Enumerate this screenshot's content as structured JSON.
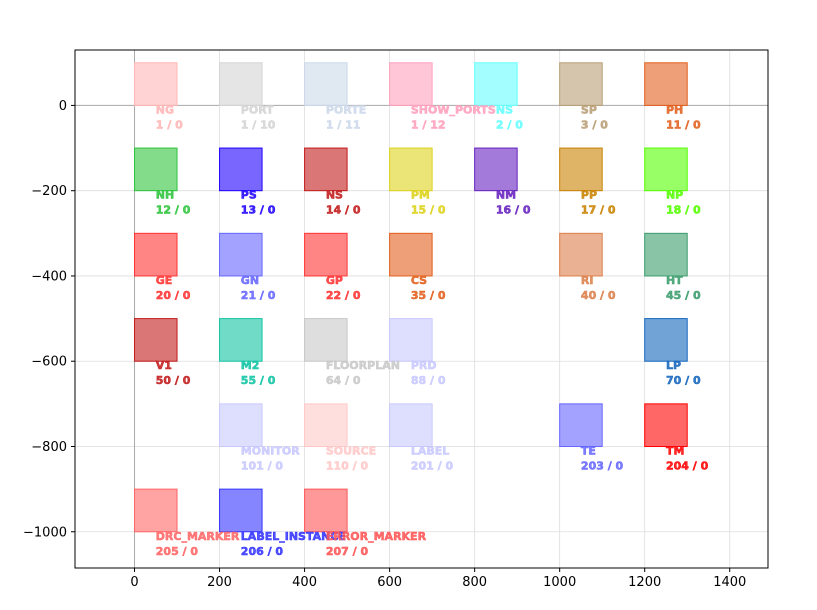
{
  "chart_data": {
    "type": "scatter",
    "title": "",
    "xlabel": "",
    "ylabel": "",
    "xlim": [
      -140,
      1490
    ],
    "ylim": [
      -1085,
      130
    ],
    "grid": true,
    "x_ticks": [
      0,
      200,
      400,
      600,
      800,
      1000,
      1200,
      1400
    ],
    "y_ticks": [
      0,
      -200,
      -400,
      -600,
      -800,
      -1000
    ],
    "x_tick_labels": [
      "0",
      "200",
      "400",
      "600",
      "800",
      "1000",
      "1200",
      "1400"
    ],
    "y_tick_labels": [
      "0",
      "−200",
      "−400",
      "−600",
      "−800",
      "−1000"
    ],
    "cell_size": 100,
    "cells": [
      {
        "name": "NG",
        "numbers": "1 / 0",
        "x": 0,
        "y": 0,
        "color": "#ffb6b6"
      },
      {
        "name": "PORT",
        "numbers": "1 / 10",
        "x": 200,
        "y": 0,
        "color": "#d4d4d4"
      },
      {
        "name": "PORTE",
        "numbers": "1 / 11",
        "x": 400,
        "y": 0,
        "color": "#ccd8ea"
      },
      {
        "name": "SHOW_PORTS",
        "numbers": "1 / 12",
        "x": 600,
        "y": 0,
        "color": "#ffa0bc"
      },
      {
        "name": "NS",
        "numbers": "2 / 0",
        "x": 800,
        "y": 0,
        "color": "#66ffff"
      },
      {
        "name": "SP",
        "numbers": "3 / 0",
        "x": 1000,
        "y": 0,
        "color": "#b89e75"
      },
      {
        "name": "PH",
        "numbers": "11 / 0",
        "x": 1200,
        "y": 0,
        "color": "#e25f1c"
      },
      {
        "name": "NH",
        "numbers": "12 / 0",
        "x": 0,
        "y": -200,
        "color": "#2ec43c"
      },
      {
        "name": "PS",
        "numbers": "13 / 0",
        "x": 200,
        "y": -200,
        "color": "#1f00ff"
      },
      {
        "name": "NS",
        "numbers": "14 / 0",
        "x": 400,
        "y": -200,
        "color": "#c21a1a"
      },
      {
        "name": "PM",
        "numbers": "15 / 0",
        "x": 600,
        "y": -200,
        "color": "#ddd21a"
      },
      {
        "name": "NM",
        "numbers": "16 / 0",
        "x": 800,
        "y": -200,
        "color": "#6621bf"
      },
      {
        "name": "PP",
        "numbers": "17 / 0",
        "x": 1000,
        "y": -200,
        "color": "#c98200"
      },
      {
        "name": "NP",
        "numbers": "18 / 0",
        "x": 1200,
        "y": -200,
        "color": "#55ff00"
      },
      {
        "name": "GE",
        "numbers": "20 / 0",
        "x": 0,
        "y": -400,
        "color": "#ff3333"
      },
      {
        "name": "GN",
        "numbers": "21 / 0",
        "x": 200,
        "y": -400,
        "color": "#6666ff"
      },
      {
        "name": "GP",
        "numbers": "22 / 0",
        "x": 400,
        "y": -400,
        "color": "#ff3333"
      },
      {
        "name": "CS",
        "numbers": "35 / 0",
        "x": 600,
        "y": -400,
        "color": "#e25f1c"
      },
      {
        "name": "RI",
        "numbers": "40 / 0",
        "x": 1000,
        "y": -400,
        "color": "#dc7f4a"
      },
      {
        "name": "HT",
        "numbers": "45 / 0",
        "x": 1200,
        "y": -400,
        "color": "#3b9c6c"
      },
      {
        "name": "V1",
        "numbers": "50 / 0",
        "x": 0,
        "y": -600,
        "color": "#c21a1a"
      },
      {
        "name": "M2",
        "numbers": "55 / 0",
        "x": 200,
        "y": -600,
        "color": "#11c4a4"
      },
      {
        "name": "FLOORPLAN",
        "numbers": "64 / 0",
        "x": 400,
        "y": -600,
        "color": "#c8c8c8"
      },
      {
        "name": "PRD",
        "numbers": "88 / 0",
        "x": 600,
        "y": -600,
        "color": "#c8c8ff"
      },
      {
        "name": "LP",
        "numbers": "70 / 0",
        "x": 1200,
        "y": -600,
        "color": "#1466bd"
      },
      {
        "name": "MONITOR",
        "numbers": "101 / 0",
        "x": 200,
        "y": -800,
        "color": "#c8c8ff"
      },
      {
        "name": "SOURCE",
        "numbers": "110 / 0",
        "x": 400,
        "y": -800,
        "color": "#ffc8c8"
      },
      {
        "name": "LABEL",
        "numbers": "201 / 0",
        "x": 600,
        "y": -800,
        "color": "#c8c8ff"
      },
      {
        "name": "TE",
        "numbers": "203 / 0",
        "x": 1000,
        "y": -800,
        "color": "#6666ff"
      },
      {
        "name": "TM",
        "numbers": "204 / 0",
        "x": 1200,
        "y": -800,
        "color": "#ff0000"
      },
      {
        "name": "DRC_MARKER",
        "numbers": "205 / 0",
        "x": 0,
        "y": -1000,
        "color": "#ff6666"
      },
      {
        "name": "LABEL_INSTANCE",
        "numbers": "206 / 0",
        "x": 200,
        "y": -1000,
        "color": "#3333ff"
      },
      {
        "name": "ERROR_MARKER",
        "numbers": "207 / 0",
        "x": 400,
        "y": -1000,
        "color": "#ff5555"
      }
    ]
  }
}
